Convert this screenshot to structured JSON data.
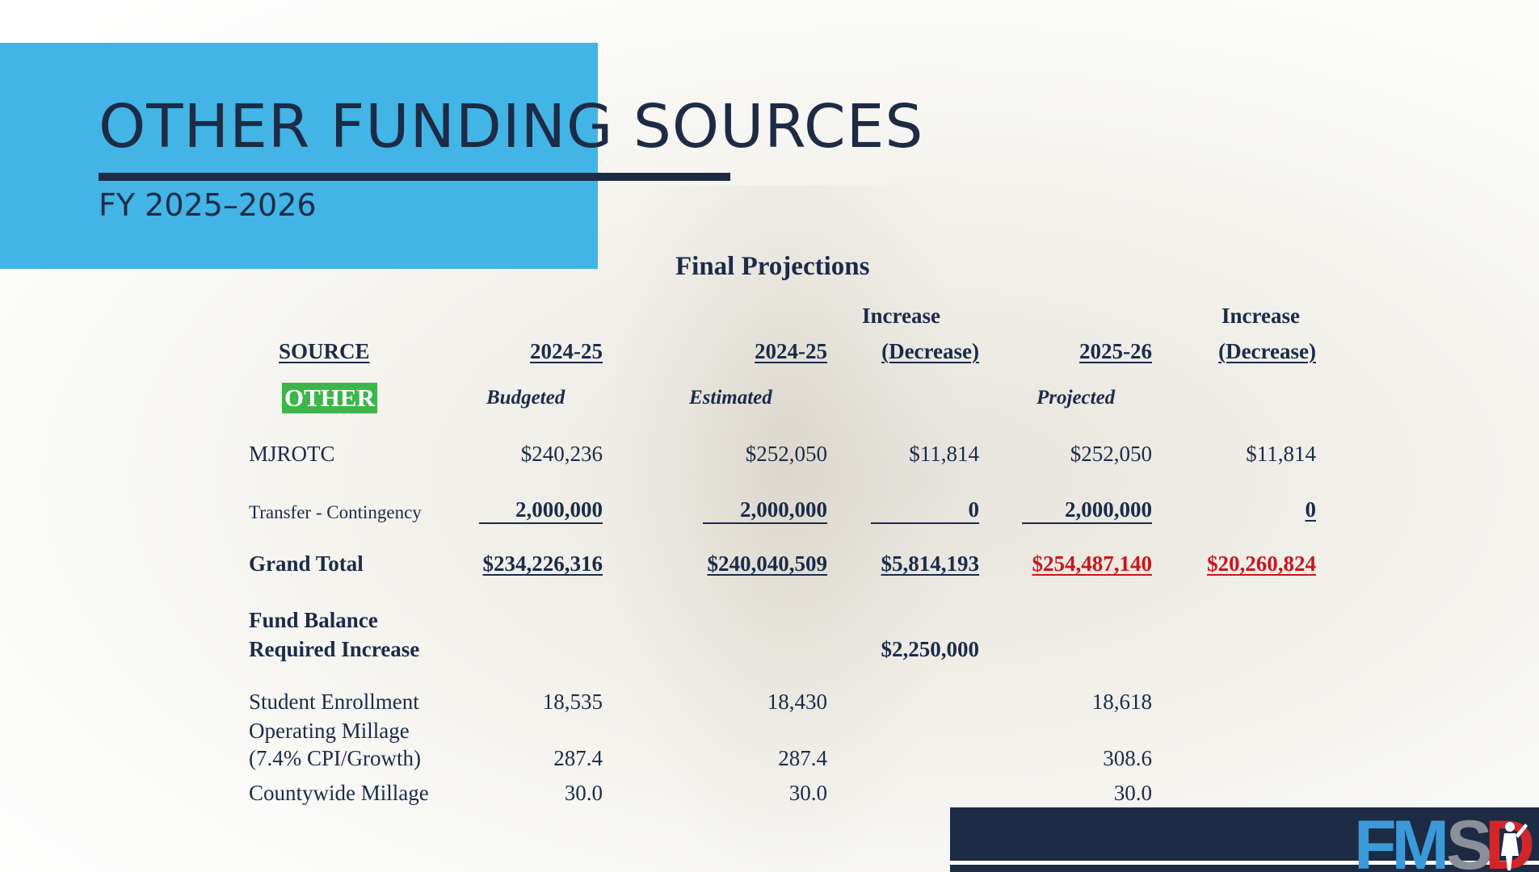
{
  "slide": {
    "title": "OTHER FUNDING SOURCES",
    "subtitle": "FY 2025–2026",
    "section_title": "Final Projections",
    "logo_text": "FMSD"
  },
  "colors": {
    "accent_blue": "#42b4e6",
    "navy": "#1d2b44",
    "highlight_green": "#3db54a",
    "alert_red": "#c8161d"
  },
  "table": {
    "headers": {
      "source": "SOURCE",
      "col1_year": "2024-25",
      "col2_year": "2024-25",
      "col3_top": "Increase",
      "col3_bottom": "(Decrease)",
      "col4_year": "2025-26",
      "col5_top": "Increase",
      "col5_bottom": "(Decrease)"
    },
    "subheaders": {
      "category": "OTHER",
      "col1": "Budgeted",
      "col2": "Estimated",
      "col4": "Projected"
    },
    "rows": {
      "mjrotc": {
        "label": "MJROTC",
        "budgeted": "$240,236",
        "estimated": "$252,050",
        "change1": "$11,814",
        "projected": "$252,050",
        "change2": "$11,814"
      },
      "transfer": {
        "label": "Transfer - Contingency",
        "budgeted": "2,000,000",
        "estimated": "2,000,000",
        "change1": "0",
        "projected": "2,000,000",
        "change2": "0"
      },
      "grand_total": {
        "label": "Grand Total",
        "budgeted": "$234,226,316",
        "estimated": "$240,040,509",
        "change1": "$5,814,193",
        "projected": "$254,487,140",
        "change2": "$20,260,824"
      },
      "fund_balance": {
        "label_line1": "Fund Balance",
        "label_line2": "Required Increase",
        "change1": "$2,250,000"
      },
      "enrollment": {
        "label": "Student  Enrollment",
        "budgeted": "18,535",
        "estimated": "18,430",
        "projected": "18,618"
      },
      "operating_millage": {
        "label_line1": "Operating Millage",
        "label_line2": "(7.4% CPI/Growth)",
        "budgeted": "287.4",
        "estimated": "287.4",
        "projected": "308.6"
      },
      "countywide_millage": {
        "label": "Countywide Millage",
        "budgeted": "30.0",
        "estimated": "30.0",
        "projected": "30.0"
      }
    }
  }
}
